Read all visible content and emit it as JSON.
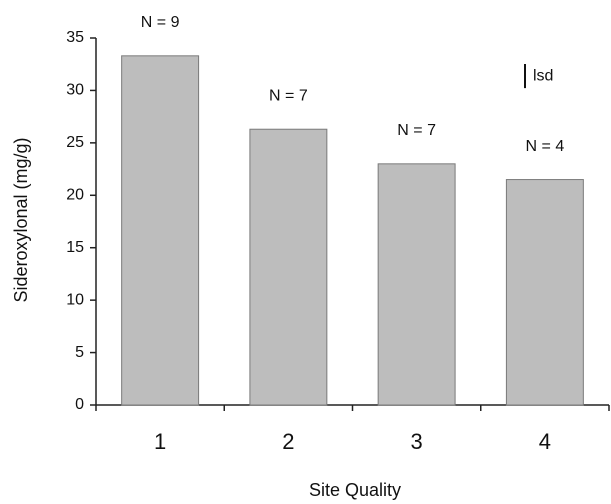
{
  "chart_data": {
    "type": "bar",
    "categories": [
      "1",
      "2",
      "3",
      "4"
    ],
    "values": [
      33.3,
      26.3,
      23.0,
      21.5
    ],
    "annotations": [
      "N = 9",
      "N = 7",
      "N = 7",
      "N = 4"
    ],
    "color": "#bdbdbd",
    "ylim": [
      0,
      35
    ],
    "yticks": [
      0,
      5,
      10,
      15,
      20,
      25,
      30,
      35
    ],
    "ylabel": "Sideroxylonal (mg/g)",
    "xlabel": "Site Quality",
    "lsd": 2.3,
    "lsd_label": "lsd"
  }
}
